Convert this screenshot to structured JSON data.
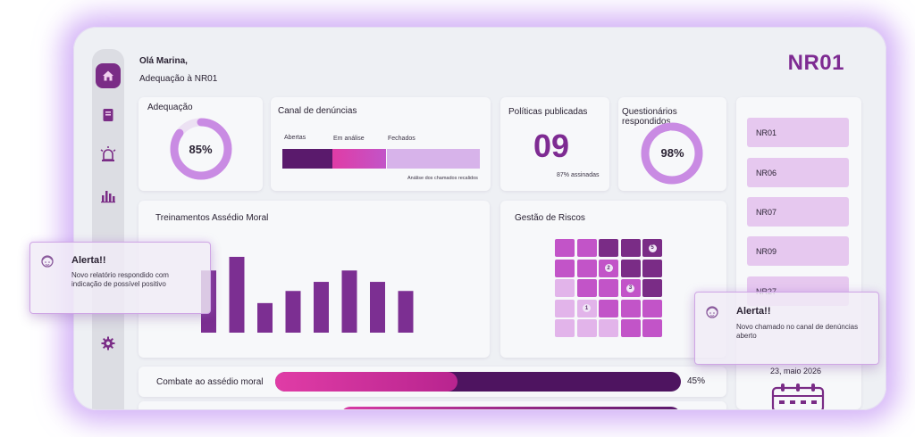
{
  "header": {
    "greeting": "Olá Marina,",
    "subtitle": "Adequação à NR01",
    "brand": "NR01"
  },
  "sidebar": {
    "items": [
      {
        "icon": "home-icon",
        "active": true
      },
      {
        "icon": "book-icon",
        "active": false
      },
      {
        "icon": "siren-icon",
        "active": false
      },
      {
        "icon": "bar-chart-icon",
        "active": false
      },
      {
        "icon": "gear-icon",
        "active": false
      }
    ]
  },
  "adequacao": {
    "title": "Adequação",
    "value": "85%",
    "percent": 85
  },
  "canal": {
    "title": "Canal de denúncias",
    "labels": [
      "Abertas",
      "Em análise",
      "Fechados"
    ],
    "note": "Análise dos chamados recalidos",
    "colors": [
      "#5a1a6c",
      "#d83fa8",
      "#d7b3ea"
    ]
  },
  "politicas": {
    "title": "Políticas publicadas",
    "value": "09",
    "note": "87% assinadas"
  },
  "questionarios": {
    "title": "Questionários respondidos",
    "value": "98%",
    "percent": 98
  },
  "treinamentos": {
    "title": "Treinamentos Assédio Moral",
    "chart_data": {
      "type": "bar",
      "title": "Treinamentos Assédio Moral",
      "categories": [
        "",
        "",
        "",
        "",
        "",
        "",
        "",
        ""
      ],
      "values": [
        82,
        100,
        39,
        55,
        67,
        82,
        67,
        55
      ],
      "ylim": [
        0,
        100
      ]
    }
  },
  "riscos": {
    "title": "Gestão de Riscos",
    "badges": [
      "5",
      "2",
      "3",
      "1"
    ]
  },
  "progress": [
    {
      "label": "Combate ao assédio moral",
      "value": "45%",
      "percent": 45
    }
  ],
  "nr_list": [
    "NR01",
    "NR06",
    "NR07",
    "NR09",
    "NR27"
  ],
  "date": "23, maio 2026",
  "alerts": [
    {
      "title": "Alerta!!",
      "text": "Novo relatório respondido com indicação de possível positivo"
    },
    {
      "title": "Alerta!!",
      "text": "Novo chamado no canal de denúncias aberto"
    }
  ]
}
